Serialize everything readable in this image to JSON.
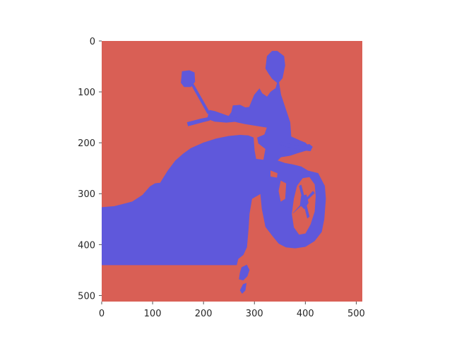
{
  "chart_data": {
    "type": "heatmap",
    "title": "",
    "xlabel": "",
    "ylabel": "",
    "xlim": [
      0,
      512
    ],
    "ylim": [
      512,
      0
    ],
    "grid": false,
    "legend": "none",
    "x_ticks": [
      0,
      100,
      200,
      300,
      400,
      500
    ],
    "y_ticks": [
      0,
      100,
      200,
      300,
      400,
      500
    ],
    "x_tick_labels": [
      "0",
      "100",
      "200",
      "300",
      "400",
      "500"
    ],
    "y_tick_labels": [
      "0",
      "100",
      "200",
      "300",
      "400",
      "500"
    ],
    "classes": [
      {
        "value": 0,
        "color": "#d95f55"
      },
      {
        "value": 1,
        "color": "#5f58db"
      }
    ],
    "regions": [
      {
        "class_value": 1,
        "label": "body",
        "points": [
          [
            0,
            327
          ],
          [
            25,
            325
          ],
          [
            45,
            320
          ],
          [
            60,
            316
          ],
          [
            80,
            303
          ],
          [
            95,
            286
          ],
          [
            105,
            280
          ],
          [
            115,
            279
          ],
          [
            130,
            255
          ],
          [
            145,
            235
          ],
          [
            160,
            222
          ],
          [
            175,
            211
          ],
          [
            200,
            200
          ],
          [
            225,
            192
          ],
          [
            250,
            187
          ],
          [
            272,
            185
          ],
          [
            288,
            186
          ],
          [
            298,
            190
          ],
          [
            300,
            215
          ],
          [
            303,
            232
          ],
          [
            318,
            234
          ],
          [
            322,
            212
          ],
          [
            308,
            201
          ],
          [
            306,
            190
          ],
          [
            320,
            184
          ],
          [
            325,
            170
          ],
          [
            282,
            163
          ],
          [
            268,
            160
          ],
          [
            252,
            156
          ],
          [
            248,
            150
          ],
          [
            255,
            140
          ],
          [
            258,
            127
          ],
          [
            272,
            126
          ],
          [
            282,
            131
          ],
          [
            290,
            130
          ],
          [
            300,
            106
          ],
          [
            310,
            94
          ],
          [
            315,
            103
          ],
          [
            325,
            110
          ],
          [
            332,
            100
          ],
          [
            342,
            93
          ],
          [
            345,
            82
          ],
          [
            335,
            74
          ],
          [
            328,
            64
          ],
          [
            322,
            54
          ],
          [
            325,
            30
          ],
          [
            335,
            20
          ],
          [
            345,
            20
          ],
          [
            358,
            30
          ],
          [
            360,
            48
          ],
          [
            355,
            73
          ],
          [
            348,
            81
          ],
          [
            352,
            106
          ],
          [
            360,
            130
          ],
          [
            370,
            160
          ],
          [
            372,
            188
          ],
          [
            390,
            196
          ],
          [
            400,
            200
          ],
          [
            405,
            205
          ],
          [
            410,
            209
          ],
          [
            402,
            215
          ],
          [
            385,
            220
          ],
          [
            370,
            225
          ],
          [
            352,
            228
          ],
          [
            345,
            235
          ],
          [
            360,
            240
          ],
          [
            375,
            243
          ],
          [
            392,
            247
          ],
          [
            405,
            255
          ],
          [
            425,
            260
          ],
          [
            438,
            285
          ],
          [
            440,
            310
          ],
          [
            437,
            350
          ],
          [
            432,
            375
          ],
          [
            418,
            393
          ],
          [
            400,
            404
          ],
          [
            380,
            407
          ],
          [
            362,
            405
          ],
          [
            348,
            398
          ],
          [
            335,
            382
          ],
          [
            322,
            365
          ],
          [
            315,
            330
          ],
          [
            312,
            300
          ],
          [
            295,
            310
          ],
          [
            290,
            340
          ],
          [
            288,
            370
          ],
          [
            285,
            405
          ],
          [
            278,
            420
          ],
          [
            268,
            428
          ],
          [
            265,
            440
          ],
          [
            0,
            440
          ]
        ]
      },
      {
        "class_value": 0,
        "label": "wheel-hole",
        "points": [
          [
            395,
            270
          ],
          [
            408,
            268
          ],
          [
            418,
            282
          ],
          [
            420,
            305
          ],
          [
            418,
            335
          ],
          [
            410,
            360
          ],
          [
            400,
            378
          ],
          [
            388,
            380
          ],
          [
            378,
            366
          ],
          [
            374,
            340
          ],
          [
            378,
            310
          ],
          [
            384,
            285
          ]
        ]
      },
      {
        "class_value": 0,
        "label": "wheel-gap",
        "points": [
          [
            352,
            275
          ],
          [
            362,
            280
          ],
          [
            360,
            310
          ],
          [
            352,
            315
          ],
          [
            348,
            295
          ]
        ]
      },
      {
        "class_value": 0,
        "label": "fork-gap",
        "points": [
          [
            332,
            255
          ],
          [
            345,
            260
          ],
          [
            344,
            268
          ],
          [
            332,
            266
          ]
        ]
      },
      {
        "class_value": 1,
        "label": "hub",
        "points": [
          [
            392,
            305
          ],
          [
            402,
            302
          ],
          [
            406,
            318
          ],
          [
            398,
            330
          ],
          [
            390,
            322
          ]
        ]
      },
      {
        "class_value": 1,
        "label": "spoke-a",
        "points": [
          [
            388,
            285
          ],
          [
            392,
            283
          ],
          [
            408,
            345
          ],
          [
            404,
            348
          ]
        ]
      },
      {
        "class_value": 1,
        "label": "spoke-b",
        "points": [
          [
            376,
            338
          ],
          [
            380,
            334
          ],
          [
            415,
            295
          ],
          [
            418,
            299
          ]
        ]
      },
      {
        "class_value": 1,
        "label": "left-mirror",
        "points": [
          [
            158,
            60
          ],
          [
            172,
            58
          ],
          [
            182,
            62
          ],
          [
            183,
            80
          ],
          [
            175,
            90
          ],
          [
            162,
            90
          ],
          [
            156,
            82
          ]
        ]
      },
      {
        "class_value": 1,
        "label": "left-mirror-stem",
        "points": [
          [
            176,
            86
          ],
          [
            180,
            84
          ],
          [
            212,
            140
          ],
          [
            208,
            143
          ]
        ]
      },
      {
        "class_value": 1,
        "label": "left-handlebar",
        "points": [
          [
            212,
            136
          ],
          [
            222,
            138
          ],
          [
            250,
            148
          ],
          [
            270,
            152
          ],
          [
            268,
            158
          ],
          [
            245,
            160
          ],
          [
            222,
            158
          ],
          [
            208,
            153
          ],
          [
            210,
            143
          ]
        ]
      },
      {
        "class_value": 1,
        "label": "left-grip",
        "points": [
          [
            168,
            160
          ],
          [
            195,
            153
          ],
          [
            210,
            150
          ],
          [
            212,
            156
          ],
          [
            196,
            160
          ],
          [
            170,
            167
          ]
        ]
      },
      {
        "class_value": 1,
        "label": "right-lever",
        "points": [
          [
            350,
            198
          ],
          [
            368,
            202
          ],
          [
            386,
            206
          ],
          [
            400,
            208
          ],
          [
            406,
            211
          ],
          [
            398,
            214
          ],
          [
            380,
            212
          ],
          [
            360,
            207
          ],
          [
            350,
            203
          ]
        ]
      },
      {
        "class_value": 1,
        "label": "right-grip",
        "points": [
          [
            398,
            205
          ],
          [
            408,
            203
          ],
          [
            414,
            208
          ],
          [
            410,
            216
          ],
          [
            400,
            215
          ]
        ]
      },
      {
        "class_value": 1,
        "label": "ground-blob",
        "points": [
          [
            275,
            445
          ],
          [
            285,
            440
          ],
          [
            290,
            450
          ],
          [
            286,
            462
          ],
          [
            278,
            470
          ],
          [
            270,
            468
          ],
          [
            272,
            455
          ]
        ]
      },
      {
        "class_value": 1,
        "label": "ground-blob-2",
        "points": [
          [
            278,
            478
          ],
          [
            284,
            476
          ],
          [
            282,
            490
          ],
          [
            276,
            496
          ],
          [
            272,
            490
          ]
        ]
      }
    ]
  }
}
